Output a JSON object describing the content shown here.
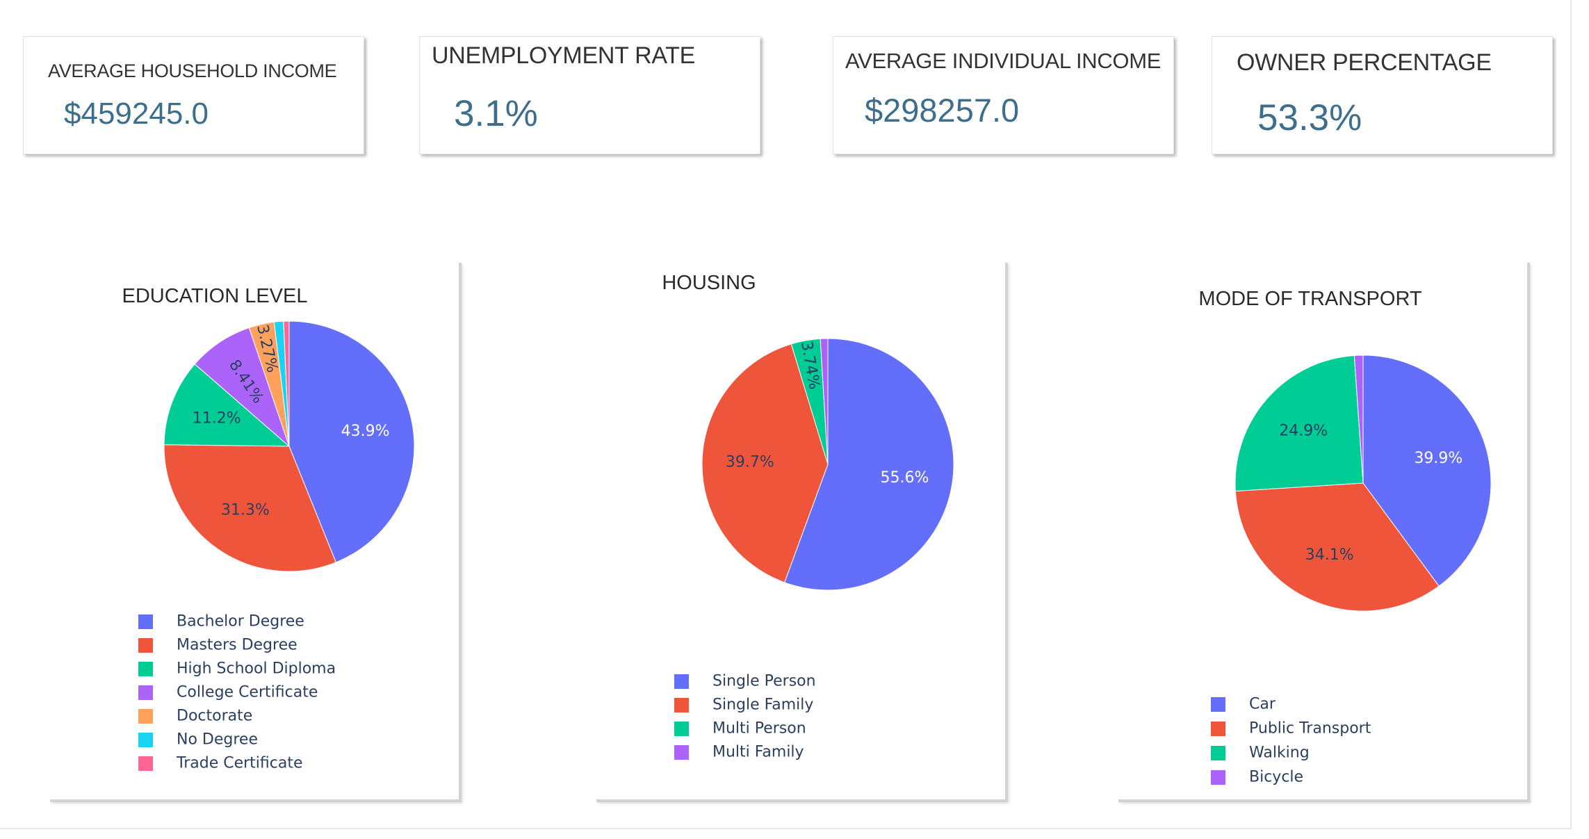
{
  "kpis": [
    {
      "title": "AVERAGE HOUSEHOLD INCOME",
      "value": "$459245.0"
    },
    {
      "title": "UNEMPLOYMENT RATE",
      "value": "3.1%"
    },
    {
      "title": "AVERAGE INDIVIDUAL INCOME",
      "value": "$298257.0"
    },
    {
      "title": "OWNER PERCENTAGE",
      "value": "53.3%"
    }
  ],
  "colors": {
    "kpi_value": "#3d6f8c",
    "series": [
      "#636efa",
      "#ef553b",
      "#00cc96",
      "#ab63fa",
      "#ffa15a",
      "#19d3f3",
      "#ff6692"
    ]
  },
  "chart_data": [
    {
      "type": "pie",
      "title": "EDUCATION LEVEL",
      "labels": [
        "Bachelor Degree",
        "Masters Degree",
        "High School Diploma",
        "College Certificate",
        "Doctorate",
        "No Degree",
        "Trade Certificate"
      ],
      "values": [
        43.9,
        31.3,
        11.2,
        8.41,
        3.27,
        1.2,
        0.72
      ],
      "slice_labels": [
        "43.9%",
        "31.3%",
        "11.2%",
        "8.41%",
        "3.27%",
        "",
        ""
      ],
      "legend": "bottom"
    },
    {
      "type": "pie",
      "title": "HOUSING",
      "labels": [
        "Single Person",
        "Single Family",
        "Multi Person",
        "Multi Family"
      ],
      "values": [
        55.6,
        39.7,
        3.74,
        0.96
      ],
      "slice_labels": [
        "55.6%",
        "39.7%",
        "3.74%",
        ""
      ],
      "legend": "bottom"
    },
    {
      "type": "pie",
      "title": "MODE OF TRANSPORT",
      "labels": [
        "Car",
        "Public Transport",
        "Walking",
        "Bicycle"
      ],
      "values": [
        39.9,
        34.1,
        24.9,
        1.1
      ],
      "slice_labels": [
        "39.9%",
        "34.1%",
        "24.9%",
        ""
      ],
      "legend": "bottom"
    }
  ]
}
